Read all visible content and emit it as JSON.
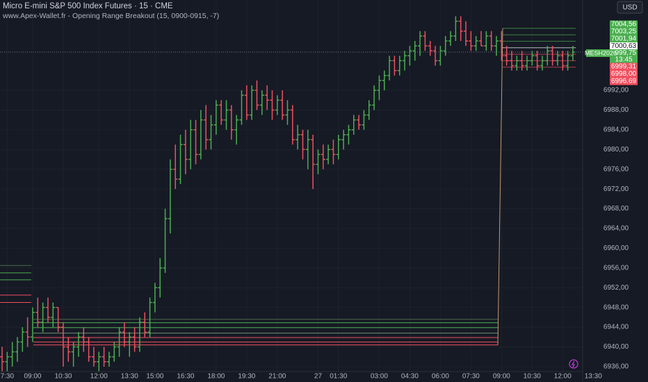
{
  "chart_data": {
    "type": "ohlc",
    "title": "Micro E-mini S&P 500 Index Futures · 15 · CME",
    "subtitle": "www.Apex-Wallet.fr - Opening Range Breakout (15, 0900-0915, -7)",
    "currency": "USD",
    "up_color": "#4caf50",
    "down_color": "#f05060",
    "grid": true,
    "ylim": [
      6935.0,
      7010.3
    ],
    "yticks": [
      {
        "value": 6936,
        "label": "6936,00"
      },
      {
        "value": 6940,
        "label": "6940,00"
      },
      {
        "value": 6944,
        "label": "6944,00"
      },
      {
        "value": 6948,
        "label": "6948,00"
      },
      {
        "value": 6952,
        "label": "6952,00"
      },
      {
        "value": 6956,
        "label": "6956,00"
      },
      {
        "value": 6960,
        "label": "6960,00"
      },
      {
        "value": 6964,
        "label": "6964,00"
      },
      {
        "value": 6968,
        "label": "6968,00"
      },
      {
        "value": 6972,
        "label": "6972,00"
      },
      {
        "value": 6976,
        "label": "6976,00"
      },
      {
        "value": 6980,
        "label": "6980,00"
      },
      {
        "value": 6984,
        "label": "6984,00"
      },
      {
        "value": 6988,
        "label": "6988,00"
      },
      {
        "value": 6992,
        "label": "6992,00"
      }
    ],
    "xticks": [
      {
        "value": 1,
        "label": "7:30"
      },
      {
        "value": 6,
        "label": "09:00"
      },
      {
        "value": 12,
        "label": "10:30"
      },
      {
        "value": 19,
        "label": "12:00"
      },
      {
        "value": 25,
        "label": "13:30"
      },
      {
        "value": 30,
        "label": "15:00"
      },
      {
        "value": 36,
        "label": "16:30"
      },
      {
        "value": 42,
        "label": "18:00"
      },
      {
        "value": 48,
        "label": "19:30"
      },
      {
        "value": 54,
        "label": "21:00"
      },
      {
        "value": 62,
        "label": "27"
      },
      {
        "value": 66,
        "label": "01:30"
      },
      {
        "value": 74,
        "label": "03:00"
      },
      {
        "value": 80,
        "label": "04:30"
      },
      {
        "value": 86,
        "label": "06:00"
      },
      {
        "value": 92,
        "label": "07:30"
      },
      {
        "value": 98,
        "label": "09:00"
      },
      {
        "value": 104,
        "label": "10:30"
      },
      {
        "value": 110,
        "label": "12:00"
      },
      {
        "value": 116,
        "label": "13:30"
      }
    ],
    "bars": [
      [
        6938,
        6940,
        6935,
        6937
      ],
      [
        6937,
        6939,
        6935,
        6938
      ],
      [
        6938,
        6941,
        6936,
        6939
      ],
      [
        6939,
        6942,
        6937,
        6941
      ],
      [
        6941,
        6944,
        6939,
        6943
      ],
      [
        6943,
        6946,
        6940,
        6942
      ],
      [
        6942,
        6948,
        6941,
        6947
      ],
      [
        6947,
        6950,
        6944,
        6945
      ],
      [
        6945,
        6949,
        6943,
        6948
      ],
      [
        6948,
        6950,
        6945,
        6946
      ],
      [
        6946,
        6949,
        6944,
        6948
      ],
      [
        6948,
        6948,
        6943,
        6944
      ],
      [
        6944,
        6945,
        6936,
        6940
      ],
      [
        6940,
        6942,
        6937,
        6939
      ],
      [
        6939,
        6941,
        6936,
        6940
      ],
      [
        6940,
        6943,
        6938,
        6942
      ],
      [
        6942,
        6944,
        6939,
        6941
      ],
      [
        6941,
        6942,
        6937,
        6938
      ],
      [
        6938,
        6940,
        6936,
        6937
      ],
      [
        6937,
        6939,
        6935,
        6938
      ],
      [
        6938,
        6940,
        6936,
        6937
      ],
      [
        6937,
        6939,
        6936,
        6938
      ],
      [
        6938,
        6941,
        6937,
        6940
      ],
      [
        6940,
        6944,
        6938,
        6943
      ],
      [
        6943,
        6945,
        6940,
        6941
      ],
      [
        6941,
        6943,
        6938,
        6942
      ],
      [
        6942,
        6944,
        6939,
        6940
      ],
      [
        6940,
        6946,
        6939,
        6945
      ],
      [
        6945,
        6947,
        6942,
        6943
      ],
      [
        6943,
        6950,
        6942,
        6949
      ],
      [
        6949,
        6953,
        6947,
        6952
      ],
      [
        6952,
        6958,
        6950,
        6956
      ],
      [
        6956,
        6968,
        6955,
        6966
      ],
      [
        6966,
        6978,
        6963,
        6976
      ],
      [
        6976,
        6981,
        6972,
        6974
      ],
      [
        6974,
        6983,
        6973,
        6981
      ],
      [
        6981,
        6984,
        6975,
        6978
      ],
      [
        6978,
        6986,
        6976,
        6984
      ],
      [
        6984,
        6986,
        6977,
        6979
      ],
      [
        6979,
        6988,
        6978,
        6986
      ],
      [
        6986,
        6989,
        6980,
        6982
      ],
      [
        6982,
        6987,
        6980,
        6985
      ],
      [
        6985,
        6990,
        6983,
        6989
      ],
      [
        6989,
        6990,
        6985,
        6986
      ],
      [
        6986,
        6990,
        6984,
        6988
      ],
      [
        6988,
        6989,
        6982,
        6984
      ],
      [
        6984,
        6987,
        6981,
        6986
      ],
      [
        6986,
        6992,
        6985,
        6991
      ],
      [
        6991,
        6993,
        6986,
        6987
      ],
      [
        6987,
        6993,
        6986,
        6992
      ],
      [
        6992,
        6994,
        6988,
        6989
      ],
      [
        6989,
        6992,
        6987,
        6991
      ],
      [
        6991,
        6993,
        6988,
        6990
      ],
      [
        6990,
        6992,
        6986,
        6988
      ],
      [
        6988,
        6991,
        6987,
        6990
      ],
      [
        6990,
        6992,
        6986,
        6987
      ],
      [
        6987,
        6990,
        6985,
        6988
      ],
      [
        6988,
        6989,
        6981,
        6982
      ],
      [
        6982,
        6985,
        6980,
        6983
      ],
      [
        6983,
        6984,
        6978,
        6980
      ],
      [
        6980,
        6984,
        6976,
        6982
      ],
      [
        6982,
        6983,
        6972,
        6977
      ],
      [
        6977,
        6980,
        6975,
        6979
      ],
      [
        6979,
        6981,
        6976,
        6978
      ],
      [
        6978,
        6981,
        6977,
        6980
      ],
      [
        6980,
        6982,
        6977,
        6979
      ],
      [
        6979,
        6983,
        6978,
        6982
      ],
      [
        6982,
        6984,
        6980,
        6983
      ],
      [
        6983,
        6985,
        6981,
        6984
      ],
      [
        6984,
        6987,
        6983,
        6986
      ],
      [
        6986,
        6987,
        6984,
        6985
      ],
      [
        6985,
        6988,
        6984,
        6987
      ],
      [
        6987,
        6990,
        6986,
        6989
      ],
      [
        6989,
        6993,
        6988,
        6992
      ],
      [
        6992,
        6995,
        6990,
        6994
      ],
      [
        6994,
        6996,
        6992,
        6995
      ],
      [
        6995,
        6999,
        6994,
        6998
      ],
      [
        6998,
        6999,
        6995,
        6996
      ],
      [
        6996,
        6999,
        6995,
        6998
      ],
      [
        6998,
        7000,
        6996,
        6999
      ],
      [
        6999,
        7001,
        6997,
        7000
      ],
      [
        7000,
        7002,
        6998,
        7001
      ],
      [
        7001,
        7004,
        6999,
        7003
      ],
      [
        7003,
        7004,
        7000,
        7001
      ],
      [
        7001,
        7002,
        6999,
        7000
      ],
      [
        7000,
        7001,
        6997,
        6998
      ],
      [
        6998,
        7001,
        6997,
        7000
      ],
      [
        7000,
        7003,
        6999,
        7002
      ],
      [
        7002,
        7004,
        7001,
        7003
      ],
      [
        7003,
        7007,
        7002,
        7006
      ],
      [
        7006,
        7007,
        7002,
        7004
      ],
      [
        7004,
        7006,
        7001,
        7002
      ],
      [
        7002,
        7004,
        7000,
        7001
      ],
      [
        7001,
        7003,
        7000,
        7002
      ],
      [
        7002,
        7004,
        7001,
        7001
      ],
      [
        7001,
        7004,
        7000,
        7003
      ],
      [
        7003,
        7004,
        7000,
        7001
      ],
      [
        7001,
        7003,
        6999,
        7002
      ],
      [
        7002,
        7004,
        6998,
        6999
      ],
      [
        6999,
        7001,
        6997,
        6998
      ],
      [
        6998,
        7000,
        6996,
        6997
      ],
      [
        6997,
        6999,
        6996,
        6998
      ],
      [
        6998,
        7000,
        6996,
        6997
      ],
      [
        6997,
        6999,
        6996,
        6998
      ],
      [
        6998,
        7000,
        6997,
        6999
      ],
      [
        6999,
        7000,
        6996,
        6997
      ],
      [
        6997,
        6999,
        6996,
        6998
      ],
      [
        6998,
        7001,
        6997,
        7000
      ],
      [
        7000,
        7001,
        6997,
        6998
      ],
      [
        6998,
        7000,
        6997,
        6999
      ],
      [
        6999,
        7000,
        6996,
        6997
      ],
      [
        6997,
        7000,
        6996,
        6999
      ],
      [
        6999,
        7001,
        6998,
        6999.75
      ]
    ],
    "prior_levels_early": [
      {
        "value": 6956.5,
        "color": "#4a6b4c"
      },
      {
        "value": 6955,
        "color": "#4caf50"
      },
      {
        "value": 6953.6,
        "color": "#4caf50"
      },
      {
        "value": 6950.5,
        "color": "#f05060"
      },
      {
        "value": 6949,
        "color": "#f05060"
      }
    ],
    "prior_levels": [
      {
        "value": 6945.6,
        "color": "#4a6b4c"
      },
      {
        "value": 6944.9,
        "color": "#4caf50"
      },
      {
        "value": 6943.9,
        "color": "#4caf50"
      },
      {
        "value": 6942.8,
        "color": "#6f8f70"
      },
      {
        "value": 6941.9,
        "color": "#f05060"
      },
      {
        "value": 6941,
        "color": "#f05060"
      },
      {
        "value": 6940.4,
        "color": "#f05060"
      }
    ],
    "levels": [
      {
        "value": 7004.56,
        "label": "7004,56",
        "color": "#4caf50"
      },
      {
        "value": 7003.25,
        "label": "7003,25",
        "color": "#4caf50"
      },
      {
        "value": 7001.94,
        "label": "7001,94",
        "color": "#4caf50"
      },
      {
        "value": 7000.63,
        "label": "7000,63",
        "color": "#ffffff"
      },
      {
        "value": 6999.31,
        "label": "6999,31",
        "color": "#f05060"
      },
      {
        "value": 6998.0,
        "label": "6998,00",
        "color": "#f05060"
      },
      {
        "value": 6996.69,
        "label": "6996,69",
        "color": "#f05060"
      }
    ],
    "price": {
      "name": "MESH2026",
      "value": 6999.75,
      "label": "6999,75",
      "countdown": "13:45",
      "color": "#4caf50"
    }
  }
}
